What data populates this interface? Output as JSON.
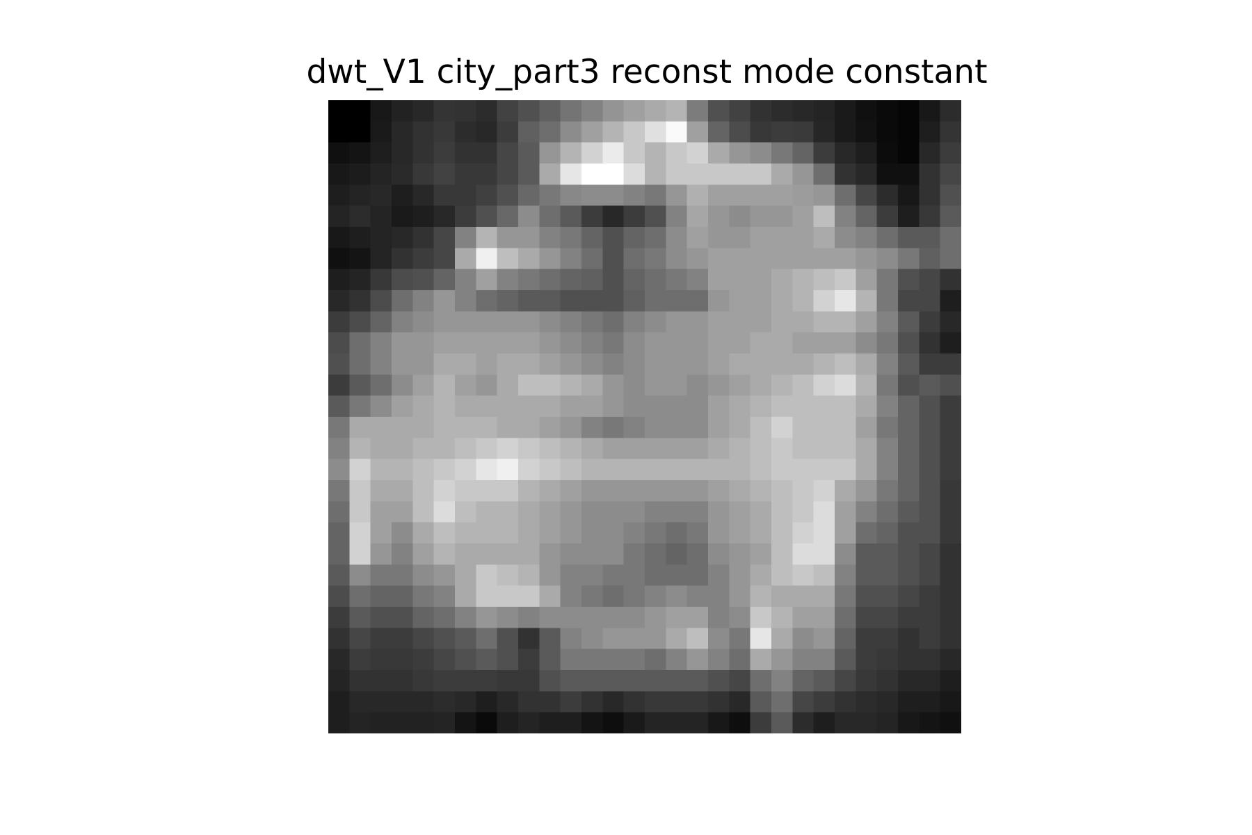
{
  "chart_data": {
    "type": "heatmap",
    "title": "dwt_V1 city_part3 reconst mode constant",
    "colormap": "gray",
    "axes_visible": false,
    "grid": false,
    "rows": 30,
    "cols": 30,
    "vmin": 0,
    "vmax": 255,
    "values": [
      [
        0,
        0,
        24,
        34,
        40,
        52,
        50,
        44,
        66,
        80,
        96,
        116,
        130,
        148,
        160,
        170,
        180,
        124,
        80,
        66,
        50,
        44,
        40,
        36,
        26,
        16,
        10,
        6,
        24,
        44
      ],
      [
        0,
        0,
        26,
        40,
        50,
        56,
        44,
        40,
        60,
        96,
        110,
        140,
        160,
        180,
        200,
        224,
        250,
        160,
        100,
        76,
        56,
        60,
        58,
        38,
        26,
        18,
        10,
        6,
        30,
        52
      ],
      [
        16,
        20,
        30,
        40,
        50,
        60,
        50,
        50,
        70,
        90,
        150,
        180,
        210,
        235,
        200,
        180,
        200,
        210,
        170,
        150,
        140,
        120,
        100,
        60,
        40,
        30,
        12,
        6,
        40,
        60
      ],
      [
        24,
        28,
        36,
        42,
        56,
        66,
        56,
        56,
        70,
        90,
        170,
        230,
        255,
        255,
        220,
        180,
        200,
        200,
        200,
        200,
        200,
        170,
        150,
        110,
        50,
        40,
        16,
        16,
        50,
        70
      ],
      [
        30,
        36,
        40,
        30,
        40,
        56,
        56,
        64,
        80,
        104,
        120,
        136,
        140,
        140,
        130,
        120,
        150,
        176,
        160,
        160,
        160,
        160,
        156,
        150,
        110,
        70,
        44,
        24,
        50,
        80
      ],
      [
        36,
        44,
        36,
        26,
        30,
        40,
        60,
        80,
        104,
        140,
        110,
        90,
        60,
        40,
        60,
        80,
        130,
        166,
        150,
        140,
        150,
        150,
        160,
        190,
        130,
        100,
        60,
        30,
        56,
        90
      ],
      [
        24,
        30,
        36,
        40,
        50,
        70,
        130,
        180,
        150,
        150,
        130,
        120,
        100,
        80,
        100,
        110,
        140,
        160,
        150,
        150,
        160,
        160,
        160,
        170,
        140,
        130,
        110,
        90,
        90,
        110
      ],
      [
        16,
        20,
        36,
        50,
        60,
        70,
        170,
        240,
        190,
        170,
        150,
        130,
        110,
        80,
        110,
        120,
        140,
        150,
        160,
        160,
        160,
        160,
        160,
        160,
        160,
        150,
        140,
        120,
        96,
        110
      ],
      [
        30,
        36,
        56,
        76,
        80,
        100,
        130,
        160,
        130,
        120,
        110,
        100,
        96,
        80,
        100,
        110,
        120,
        130,
        160,
        160,
        160,
        170,
        180,
        190,
        200,
        160,
        120,
        80,
        70,
        50
      ],
      [
        40,
        50,
        76,
        110,
        130,
        150,
        130,
        110,
        100,
        90,
        90,
        80,
        80,
        80,
        96,
        110,
        110,
        110,
        150,
        160,
        160,
        170,
        180,
        210,
        230,
        180,
        120,
        70,
        70,
        30
      ],
      [
        60,
        76,
        100,
        130,
        140,
        150,
        150,
        150,
        150,
        150,
        140,
        130,
        120,
        110,
        130,
        140,
        150,
        150,
        160,
        160,
        160,
        170,
        170,
        180,
        180,
        160,
        130,
        90,
        60,
        40
      ],
      [
        76,
        110,
        130,
        150,
        150,
        160,
        160,
        160,
        160,
        160,
        150,
        140,
        130,
        120,
        140,
        150,
        150,
        150,
        160,
        160,
        170,
        170,
        160,
        160,
        160,
        140,
        120,
        80,
        50,
        30
      ],
      [
        80,
        110,
        130,
        150,
        150,
        170,
        170,
        160,
        170,
        170,
        160,
        150,
        140,
        130,
        140,
        150,
        150,
        150,
        160,
        170,
        170,
        170,
        170,
        180,
        190,
        170,
        130,
        90,
        60,
        60
      ],
      [
        60,
        90,
        110,
        140,
        160,
        180,
        160,
        150,
        170,
        190,
        190,
        180,
        170,
        150,
        140,
        150,
        150,
        140,
        150,
        160,
        170,
        180,
        190,
        210,
        220,
        180,
        120,
        80,
        90,
        80
      ],
      [
        90,
        120,
        140,
        160,
        170,
        180,
        170,
        170,
        170,
        170,
        170,
        160,
        160,
        150,
        140,
        140,
        140,
        140,
        160,
        170,
        180,
        190,
        190,
        190,
        190,
        170,
        130,
        100,
        80,
        60
      ],
      [
        120,
        170,
        170,
        170,
        170,
        180,
        180,
        180,
        170,
        170,
        160,
        150,
        130,
        120,
        130,
        140,
        140,
        140,
        160,
        170,
        190,
        210,
        190,
        190,
        190,
        160,
        120,
        100,
        80,
        60
      ],
      [
        130,
        180,
        170,
        170,
        180,
        180,
        190,
        200,
        210,
        200,
        190,
        180,
        170,
        160,
        160,
        160,
        160,
        160,
        170,
        180,
        190,
        200,
        190,
        190,
        190,
        170,
        130,
        100,
        80,
        60
      ],
      [
        140,
        210,
        180,
        180,
        190,
        200,
        210,
        230,
        240,
        210,
        200,
        190,
        180,
        180,
        180,
        180,
        180,
        180,
        180,
        180,
        190,
        200,
        200,
        200,
        200,
        170,
        130,
        100,
        80,
        60
      ],
      [
        120,
        200,
        170,
        170,
        190,
        210,
        200,
        200,
        200,
        180,
        170,
        160,
        150,
        150,
        150,
        150,
        150,
        150,
        160,
        170,
        180,
        190,
        200,
        210,
        170,
        150,
        120,
        100,
        80,
        56
      ],
      [
        110,
        200,
        160,
        160,
        190,
        220,
        190,
        180,
        180,
        170,
        160,
        150,
        140,
        140,
        140,
        130,
        130,
        130,
        150,
        160,
        170,
        190,
        200,
        220,
        160,
        130,
        110,
        90,
        80,
        56
      ],
      [
        100,
        210,
        160,
        140,
        170,
        190,
        180,
        180,
        180,
        170,
        160,
        150,
        140,
        140,
        130,
        120,
        110,
        120,
        150,
        160,
        170,
        190,
        210,
        220,
        160,
        110,
        100,
        80,
        80,
        56
      ],
      [
        100,
        210,
        150,
        130,
        160,
        180,
        170,
        170,
        170,
        170,
        150,
        140,
        140,
        140,
        120,
        110,
        100,
        110,
        140,
        150,
        160,
        190,
        220,
        220,
        140,
        90,
        90,
        80,
        70,
        50
      ],
      [
        90,
        140,
        120,
        120,
        140,
        150,
        170,
        200,
        190,
        180,
        150,
        130,
        130,
        120,
        120,
        110,
        110,
        110,
        130,
        150,
        170,
        190,
        200,
        190,
        130,
        90,
        90,
        80,
        70,
        50
      ],
      [
        76,
        110,
        100,
        100,
        120,
        130,
        170,
        200,
        200,
        200,
        170,
        130,
        120,
        110,
        120,
        130,
        140,
        130,
        130,
        150,
        180,
        170,
        170,
        170,
        120,
        80,
        80,
        70,
        60,
        50
      ],
      [
        60,
        90,
        80,
        80,
        100,
        110,
        130,
        150,
        140,
        130,
        140,
        140,
        140,
        140,
        140,
        150,
        160,
        160,
        130,
        140,
        200,
        180,
        160,
        160,
        110,
        70,
        70,
        60,
        60,
        50
      ],
      [
        50,
        70,
        60,
        60,
        70,
        80,
        90,
        110,
        80,
        50,
        90,
        130,
        140,
        150,
        150,
        150,
        170,
        190,
        140,
        120,
        230,
        170,
        140,
        150,
        100,
        60,
        60,
        50,
        60,
        50
      ],
      [
        40,
        60,
        56,
        56,
        60,
        70,
        80,
        90,
        80,
        60,
        90,
        120,
        120,
        120,
        120,
        110,
        130,
        150,
        130,
        110,
        170,
        150,
        130,
        130,
        90,
        60,
        56,
        50,
        50,
        40
      ],
      [
        36,
        50,
        50,
        50,
        56,
        60,
        60,
        60,
        56,
        56,
        80,
        90,
        90,
        90,
        90,
        90,
        90,
        90,
        80,
        70,
        110,
        130,
        100,
        90,
        70,
        56,
        50,
        40,
        40,
        30
      ],
      [
        30,
        40,
        40,
        40,
        40,
        44,
        40,
        30,
        40,
        50,
        50,
        60,
        50,
        40,
        50,
        56,
        56,
        56,
        50,
        40,
        90,
        110,
        70,
        60,
        50,
        44,
        40,
        30,
        30,
        24
      ],
      [
        30,
        36,
        34,
        34,
        34,
        36,
        20,
        10,
        30,
        36,
        30,
        30,
        20,
        14,
        26,
        36,
        36,
        36,
        24,
        14,
        60,
        90,
        44,
        30,
        40,
        40,
        36,
        24,
        20,
        16
      ]
    ]
  }
}
